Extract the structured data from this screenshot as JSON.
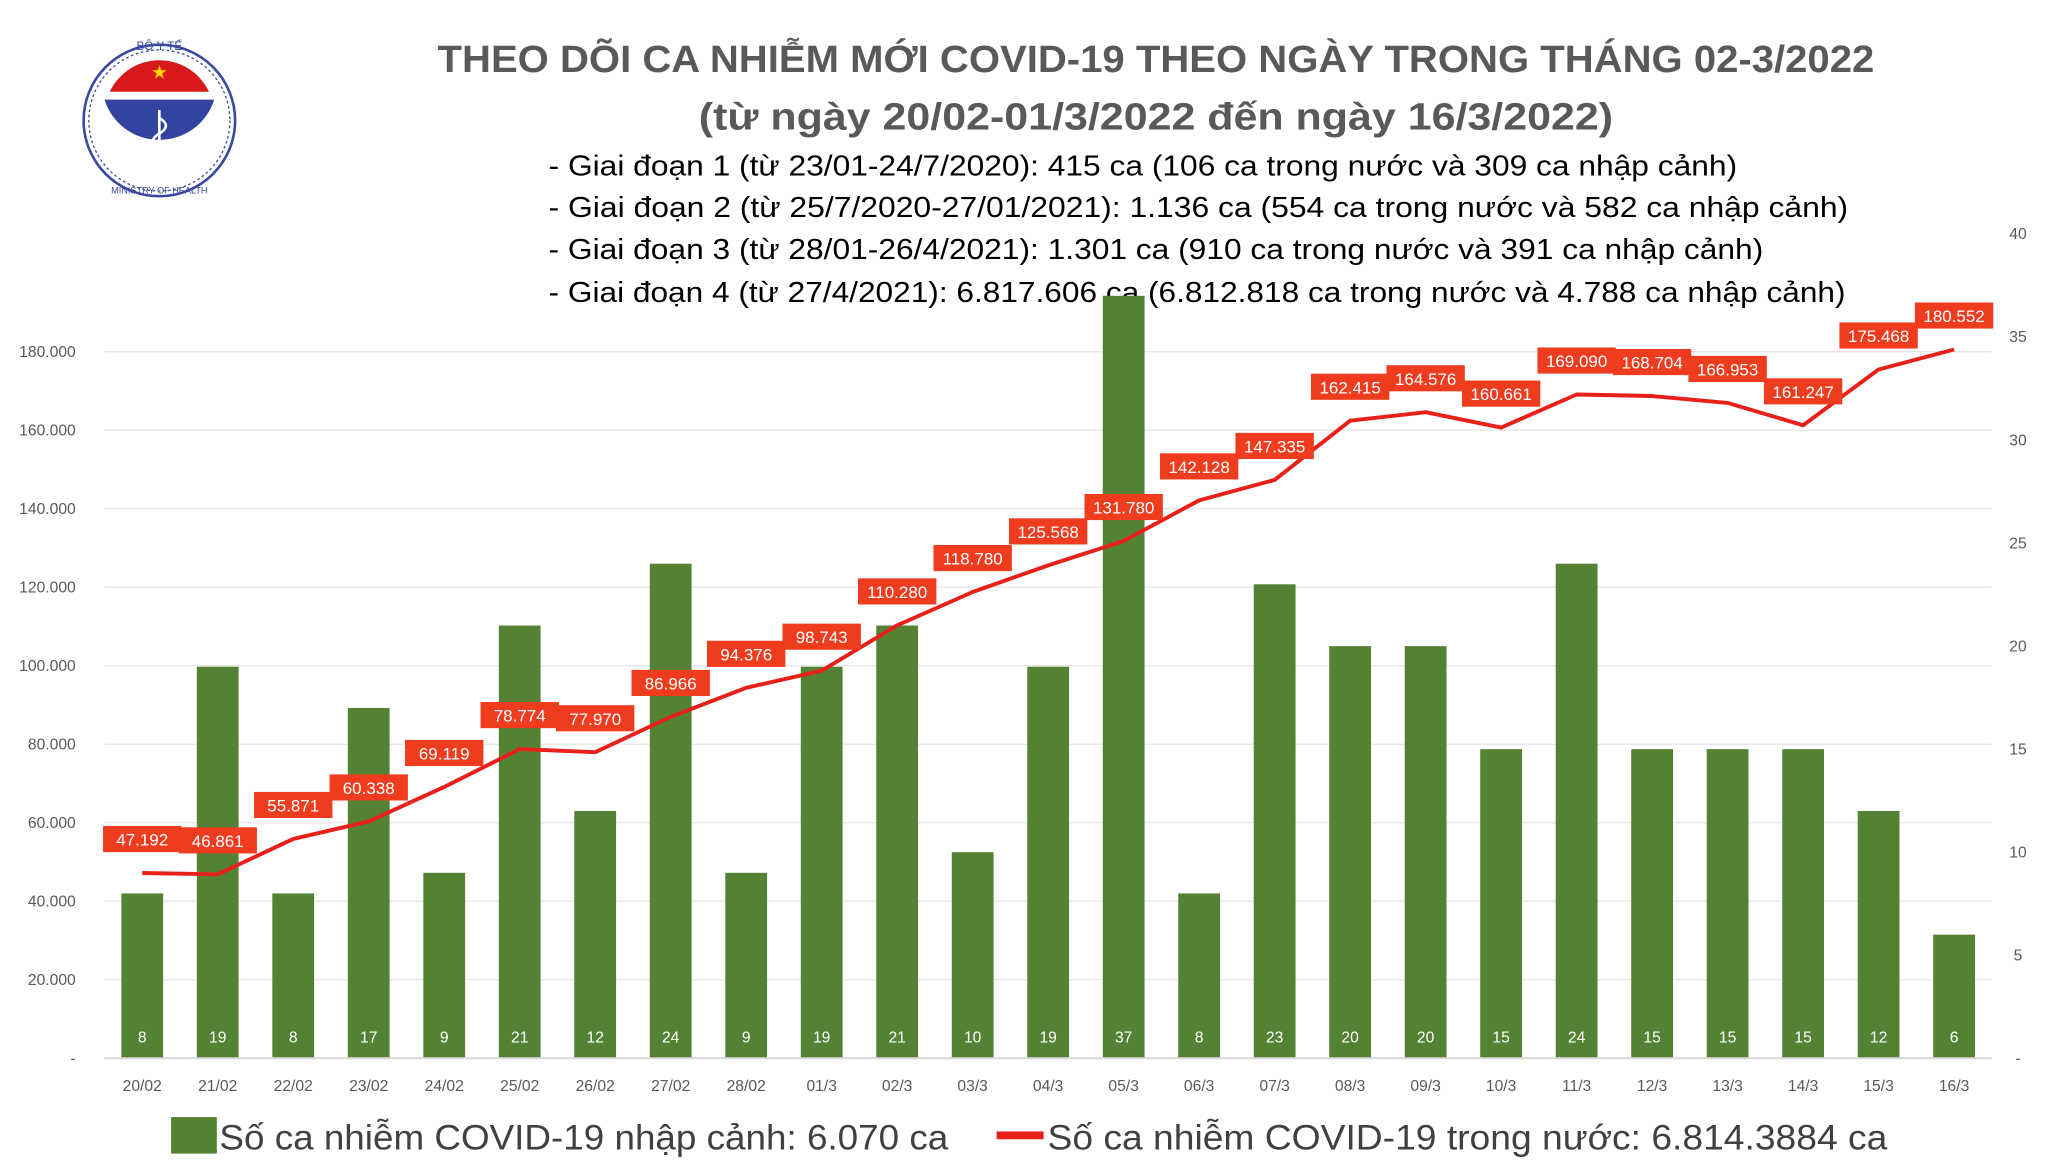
{
  "header": {
    "title": "THEO DÕI CA NHIỄM MỚI COVID-19 THEO NGÀY TRONG THÁNG 02-3/2022",
    "subtitle": "(từ ngày 20/02-01/3/2022 đến ngày 16/3/2022)",
    "stages": [
      "- Giai đoạn 1 (từ 23/01-24/7/2020): 415 ca (106 ca trong nước và 309 ca nhập cảnh)",
      "- Giai đoạn 2 (từ 25/7/2020-27/01/2021): 1.136 ca (554 ca trong nước và 582 ca nhập cảnh)",
      "- Giai đoạn 3 (từ 28/01-26/4/2021): 1.301 ca (910 ca trong nước và 391 ca nhập cảnh)",
      "- Giai đoạn 4 (từ 27/4/2021): 6.817.606 ca (6.812.818 ca trong nước và 4.788 ca nhập cảnh)"
    ],
    "logo_text": "BỘ Y TẾ · MINISTRY OF HEALTH"
  },
  "chart_data": {
    "type": "bar+line",
    "categories": [
      "20/02",
      "21/02",
      "22/02",
      "23/02",
      "24/02",
      "25/02",
      "26/02",
      "27/02",
      "28/02",
      "01/3",
      "02/3",
      "03/3",
      "04/3",
      "05/3",
      "06/3",
      "07/3",
      "08/3",
      "09/3",
      "10/3",
      "11/3",
      "12/3",
      "13/3",
      "14/3",
      "15/3",
      "16/3"
    ],
    "series": [
      {
        "name": "Số ca nhiễm COVID-19 nhập cảnh: 6.070 ca",
        "type": "bar",
        "axis": "right",
        "color": "#548235",
        "values": [
          8,
          19,
          8,
          17,
          9,
          21,
          12,
          24,
          9,
          19,
          21,
          10,
          19,
          37,
          8,
          23,
          20,
          20,
          15,
          24,
          15,
          15,
          15,
          12,
          6
        ]
      },
      {
        "name": "Số ca nhiễm COVID-19 trong nước: 6.814.3884 ca",
        "type": "line",
        "axis": "left",
        "color": "#e8201a",
        "values": [
          47192,
          46861,
          55871,
          60338,
          69119,
          78774,
          77970,
          86966,
          94376,
          98743,
          110280,
          118780,
          125568,
          131780,
          142128,
          147335,
          162415,
          164576,
          160661,
          169090,
          168704,
          166953,
          161247,
          175468,
          180552
        ],
        "labels": [
          "47.192",
          "46.861",
          "55.871",
          "60.338",
          "69.119",
          "78.774",
          "77.970",
          "86.966",
          "94.376",
          "98.743",
          "110.280",
          "118.780",
          "125.568",
          "131.780",
          "142.128",
          "147.335",
          "162.415",
          "164.576",
          "160.661",
          "169.090",
          "168.704",
          "166.953",
          "161.247",
          "175.468",
          "180.552"
        ]
      }
    ],
    "left_axis": {
      "range": [
        0,
        200000
      ],
      "ticks": [
        "-",
        "20.000",
        "40.000",
        "60.000",
        "80.000",
        "100.000",
        "120.000",
        "140.000",
        "160.000",
        "180.000"
      ]
    },
    "right_axis": {
      "range": [
        0,
        40
      ],
      "ticks": [
        "-",
        "5",
        "10",
        "15",
        "20",
        "25",
        "30",
        "35",
        "40"
      ]
    },
    "grid": true,
    "legend": "bottom"
  }
}
